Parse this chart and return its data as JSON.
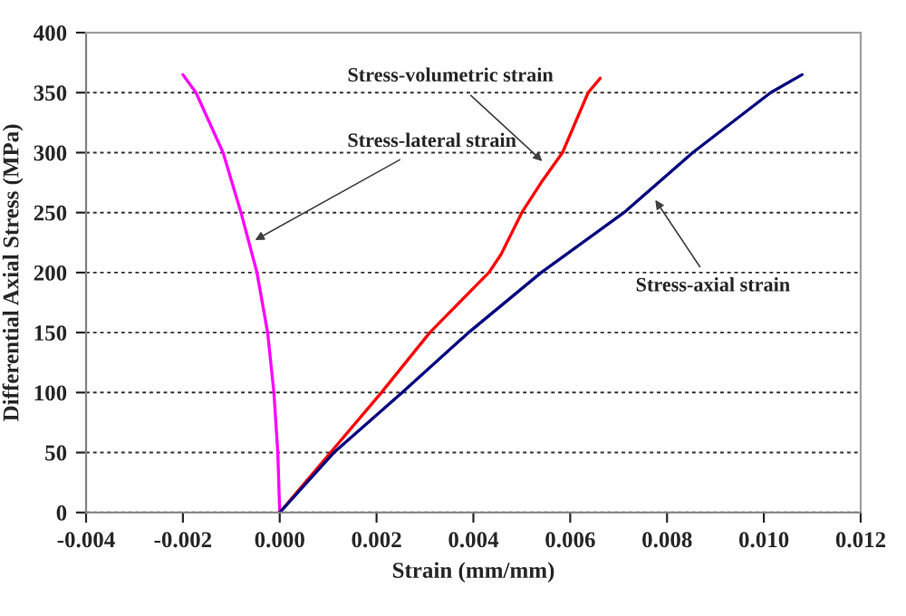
{
  "chart_data": {
    "type": "line",
    "xlabel": "Strain (mm/mm)",
    "ylabel": "Differential Axial Stress (MPa)",
    "xlim": [
      -0.004,
      0.012
    ],
    "xticks": [
      {
        "value": -0.004,
        "label": "-0.004"
      },
      {
        "value": -0.002,
        "label": "-0.002"
      },
      {
        "value": 0,
        "label": "0.000"
      },
      {
        "value": 0.002,
        "label": "0.002"
      },
      {
        "value": 0.004,
        "label": "0.004"
      },
      {
        "value": 0.006,
        "label": "0.006"
      },
      {
        "value": 0.008,
        "label": "0.008"
      },
      {
        "value": 0.01,
        "label": "0.010"
      },
      {
        "value": 0.012,
        "label": "0.012"
      }
    ],
    "ylim": [
      0,
      400
    ],
    "yticks": [
      0,
      50,
      100,
      150,
      200,
      250,
      300,
      350,
      400
    ],
    "grid": "y",
    "marker": "none",
    "line_style": "solid",
    "legend": false,
    "series": [
      {
        "color": "#ff00ff",
        "x": [
          0,
          -4e-05,
          -0.00012,
          -0.00025,
          -0.00047,
          -0.0008,
          -0.00117,
          -0.00173,
          -0.002
        ],
        "values": [
          0,
          50,
          100,
          150,
          200,
          250,
          300,
          350,
          365
        ]
      },
      {
        "color": "#ff0000",
        "x": [
          0,
          0.00105,
          0.0021,
          0.0031,
          0.00432,
          0.00457,
          0.005,
          0.0054,
          0.00584,
          0.00637,
          0.00662
        ],
        "values": [
          0,
          50,
          100,
          150,
          200,
          215,
          250,
          275,
          300,
          350,
          362
        ]
      },
      {
        "color": "#000080",
        "x": [
          0,
          0.00112,
          0.00253,
          0.0039,
          0.0054,
          0.00711,
          0.00853,
          0.01014,
          0.01079
        ],
        "values": [
          0,
          50,
          100,
          150,
          200,
          250,
          300,
          350,
          365
        ]
      }
    ],
    "annotations": [
      {
        "text": "Stress-lateral strain",
        "x": -0.0006,
        "y": 225
      },
      {
        "text": "Stress-volumetric strain",
        "x": 0.0055,
        "y": 290
      },
      {
        "text": "Stress-axial strain",
        "x": 0.0077,
        "y": 264
      }
    ]
  }
}
